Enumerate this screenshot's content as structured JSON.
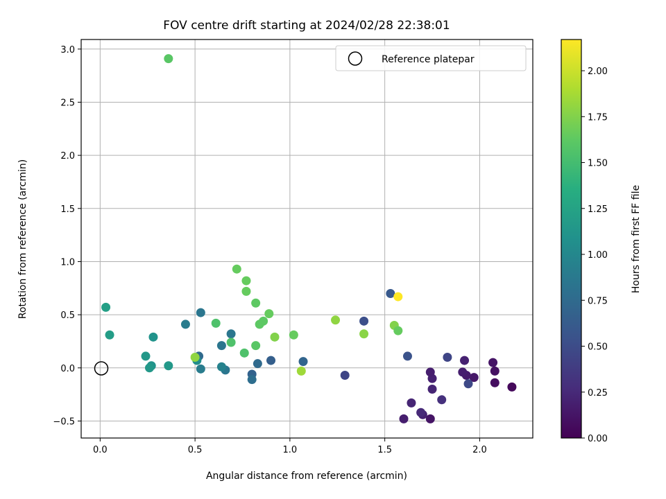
{
  "chart_data": {
    "type": "scatter",
    "title": "FOV centre drift starting at 2024/02/28 22:38:01",
    "xlabel": "Angular distance from reference (arcmin)",
    "ylabel": "Rotation from reference (arcmin)",
    "xlim": [
      -0.1,
      2.28
    ],
    "ylim": [
      -0.66,
      3.09
    ],
    "xticks": [
      0.0,
      0.5,
      1.0,
      1.5,
      2.0
    ],
    "xtick_labels": [
      "0.0",
      "0.5",
      "1.0",
      "1.5",
      "2.0"
    ],
    "yticks": [
      -0.5,
      0.0,
      0.5,
      1.0,
      1.5,
      2.0,
      2.5,
      3.0
    ],
    "ytick_labels": [
      "−0.5",
      "0.0",
      "0.5",
      "1.0",
      "1.5",
      "2.0",
      "2.5",
      "3.0"
    ],
    "grid": true,
    "legend": {
      "placement": "upper-right",
      "entries": [
        {
          "label": "Reference platepar",
          "marker": "open-circle",
          "x": 0.0,
          "y": 0.0
        }
      ]
    },
    "colorbar": {
      "label": "Hours from first FF file",
      "colormap": "viridis",
      "range": [
        0.0,
        2.17
      ],
      "ticks": [
        0.0,
        0.25,
        0.5,
        0.75,
        1.0,
        1.25,
        1.5,
        1.75,
        2.0
      ],
      "tick_labels": [
        "0.00",
        "0.25",
        "0.50",
        "0.75",
        "1.00",
        "1.25",
        "1.50",
        "1.75",
        "2.00"
      ]
    },
    "points": [
      {
        "x": 2.17,
        "y": -0.18,
        "c": 0.05
      },
      {
        "x": 2.08,
        "y": -0.14,
        "c": 0.08
      },
      {
        "x": 2.08,
        "y": -0.03,
        "c": 0.1
      },
      {
        "x": 2.07,
        "y": 0.05,
        "c": 0.12
      },
      {
        "x": 1.97,
        "y": -0.09,
        "c": 0.14
      },
      {
        "x": 1.93,
        "y": -0.07,
        "c": 0.16
      },
      {
        "x": 1.91,
        "y": -0.04,
        "c": 0.18
      },
      {
        "x": 1.92,
        "y": 0.07,
        "c": 0.2
      },
      {
        "x": 1.94,
        "y": -0.15,
        "c": 0.48
      },
      {
        "x": 1.83,
        "y": 0.1,
        "c": 0.45
      },
      {
        "x": 1.8,
        "y": -0.3,
        "c": 0.3
      },
      {
        "x": 1.75,
        "y": -0.2,
        "c": 0.22
      },
      {
        "x": 1.75,
        "y": -0.1,
        "c": 0.2
      },
      {
        "x": 1.74,
        "y": -0.04,
        "c": 0.18
      },
      {
        "x": 1.74,
        "y": -0.48,
        "c": 0.12
      },
      {
        "x": 1.7,
        "y": -0.44,
        "c": 0.2
      },
      {
        "x": 1.69,
        "y": -0.42,
        "c": 0.25
      },
      {
        "x": 1.64,
        "y": -0.33,
        "c": 0.22
      },
      {
        "x": 1.6,
        "y": -0.48,
        "c": 0.18
      },
      {
        "x": 1.62,
        "y": 0.11,
        "c": 0.55
      },
      {
        "x": 1.53,
        "y": 0.7,
        "c": 0.6
      },
      {
        "x": 1.57,
        "y": 0.67,
        "c": 2.17
      },
      {
        "x": 1.55,
        "y": 0.4,
        "c": 1.75
      },
      {
        "x": 1.57,
        "y": 0.35,
        "c": 1.65
      },
      {
        "x": 1.39,
        "y": 0.44,
        "c": 0.52
      },
      {
        "x": 1.39,
        "y": 0.32,
        "c": 1.78
      },
      {
        "x": 1.29,
        "y": -0.07,
        "c": 0.45
      },
      {
        "x": 1.24,
        "y": 0.45,
        "c": 1.8
      },
      {
        "x": 1.07,
        "y": 0.06,
        "c": 0.7
      },
      {
        "x": 1.06,
        "y": -0.03,
        "c": 1.85
      },
      {
        "x": 1.02,
        "y": 0.31,
        "c": 1.65
      },
      {
        "x": 0.92,
        "y": 0.29,
        "c": 1.75
      },
      {
        "x": 0.9,
        "y": 0.07,
        "c": 0.65
      },
      {
        "x": 0.89,
        "y": 0.51,
        "c": 1.65
      },
      {
        "x": 0.86,
        "y": 0.44,
        "c": 1.62
      },
      {
        "x": 0.84,
        "y": 0.41,
        "c": 1.62
      },
      {
        "x": 0.83,
        "y": 0.04,
        "c": 0.75
      },
      {
        "x": 0.82,
        "y": 0.61,
        "c": 1.62
      },
      {
        "x": 0.82,
        "y": 0.21,
        "c": 1.6
      },
      {
        "x": 0.8,
        "y": -0.06,
        "c": 0.68
      },
      {
        "x": 0.8,
        "y": -0.11,
        "c": 0.78
      },
      {
        "x": 0.77,
        "y": 0.82,
        "c": 1.65
      },
      {
        "x": 0.77,
        "y": 0.72,
        "c": 1.65
      },
      {
        "x": 0.76,
        "y": 0.14,
        "c": 1.55
      },
      {
        "x": 0.72,
        "y": 0.93,
        "c": 1.65
      },
      {
        "x": 0.69,
        "y": 0.32,
        "c": 0.85
      },
      {
        "x": 0.69,
        "y": 0.24,
        "c": 1.55
      },
      {
        "x": 0.66,
        "y": -0.02,
        "c": 0.85
      },
      {
        "x": 0.64,
        "y": 0.01,
        "c": 0.95
      },
      {
        "x": 0.64,
        "y": 0.21,
        "c": 0.85
      },
      {
        "x": 0.61,
        "y": 0.42,
        "c": 1.55
      },
      {
        "x": 0.53,
        "y": 0.52,
        "c": 0.85
      },
      {
        "x": 0.53,
        "y": -0.01,
        "c": 0.9
      },
      {
        "x": 0.52,
        "y": 0.11,
        "c": 0.75
      },
      {
        "x": 0.51,
        "y": 0.07,
        "c": 1.05
      },
      {
        "x": 0.5,
        "y": 0.1,
        "c": 1.8
      },
      {
        "x": 0.45,
        "y": 0.41,
        "c": 0.9
      },
      {
        "x": 0.36,
        "y": 2.91,
        "c": 1.6
      },
      {
        "x": 0.36,
        "y": 0.02,
        "c": 1.15
      },
      {
        "x": 0.28,
        "y": 0.29,
        "c": 1.1
      },
      {
        "x": 0.27,
        "y": 0.02,
        "c": 1.1
      },
      {
        "x": 0.26,
        "y": 0.0,
        "c": 1.15
      },
      {
        "x": 0.24,
        "y": 0.11,
        "c": 1.15
      },
      {
        "x": 0.05,
        "y": 0.31,
        "c": 1.2
      },
      {
        "x": 0.03,
        "y": 0.57,
        "c": 1.22
      }
    ]
  }
}
